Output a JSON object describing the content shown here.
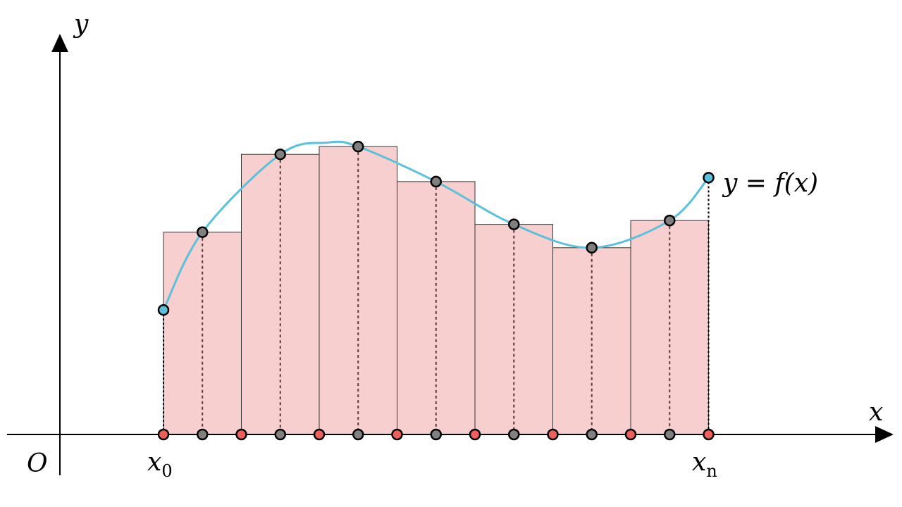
{
  "labels": {
    "y_axis": "y",
    "x_axis": "x",
    "origin": "O",
    "x0_base": "x",
    "x0_sub": "0",
    "xn_base": "x",
    "xn_sub": "n",
    "curve": "y = f(x)"
  },
  "colors": {
    "background": "#ffffff",
    "axis": "#000000",
    "curve": "#5bc0dc",
    "rect_fill": "#f7cfcf",
    "rect_stroke": "#333333",
    "dash": "#5a3a3a",
    "point_gray": "#808080",
    "point_red": "#f0605a",
    "point_cyan": "#5bc0dc"
  },
  "chart_data": {
    "type": "riemann-sum",
    "x_start": 0,
    "x_end": 7,
    "subintervals": 7,
    "partition_points": [
      0,
      1,
      2,
      3,
      4,
      5,
      6,
      7
    ],
    "sample_points": [
      0.5,
      1.5,
      2.5,
      3.5,
      4.5,
      5.5,
      6.5
    ],
    "rect_heights": [
      2.6,
      3.6,
      3.7,
      3.25,
      2.7,
      2.4,
      2.75
    ],
    "curve_points": [
      [
        0,
        1.6
      ],
      [
        0.5,
        2.6
      ],
      [
        1.5,
        3.6
      ],
      [
        2.1,
        3.75
      ],
      [
        2.5,
        3.7
      ],
      [
        3.5,
        3.25
      ],
      [
        4.5,
        2.7
      ],
      [
        5.5,
        2.4
      ],
      [
        6.5,
        2.75
      ],
      [
        7,
        3.3
      ]
    ]
  }
}
